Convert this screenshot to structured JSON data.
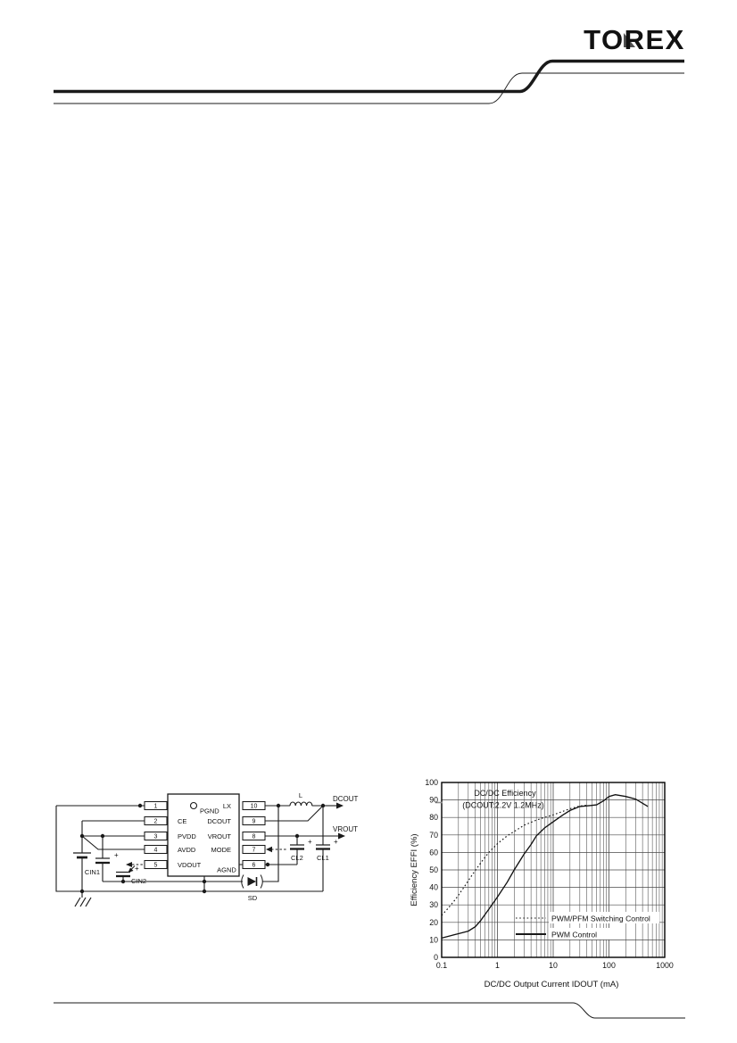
{
  "header": {
    "logo_text": "TOREX"
  },
  "circuit": {
    "pins_left": [
      {
        "number": "1",
        "name": "PGND"
      },
      {
        "number": "2",
        "name": "CE"
      },
      {
        "number": "3",
        "name": "PVDD"
      },
      {
        "number": "4",
        "name": "AVDD"
      },
      {
        "number": "5",
        "name": "VDOUT"
      }
    ],
    "pins_right": [
      {
        "number": "10",
        "name": "LX"
      },
      {
        "number": "9",
        "name": "DCOUT"
      },
      {
        "number": "8",
        "name": "VROUT"
      },
      {
        "number": "7",
        "name": "MODE"
      },
      {
        "number": "6",
        "name": "AGND"
      }
    ],
    "labels": {
      "inductor": "L",
      "cin1": "CIN1",
      "cin2": "CIN2",
      "cl1": "CL1",
      "cl2": "CL2",
      "diode": "SD",
      "dcout": "DCOUT",
      "vrout": "VROUT",
      "plus": "+"
    }
  },
  "chart_data": {
    "type": "line",
    "title": "DC/DC Efficiency",
    "subtitle": "(DCOUT:2.2V  1.2MHz)",
    "xlabel": "DC/DC Output Current IDOUT (mA)",
    "ylabel": "Efficiency EFFI (%)",
    "xscale": "log",
    "xlim": [
      0.1,
      1000
    ],
    "ylim": [
      0,
      100
    ],
    "xticks": [
      "0.1",
      "1",
      "10",
      "100",
      "1000"
    ],
    "yticks": [
      0,
      10,
      20,
      30,
      40,
      50,
      60,
      70,
      80,
      90,
      100
    ],
    "grid": true,
    "legend_position": "inside-bottom-right",
    "series": [
      {
        "name": "PWM/PFM Switching Control",
        "style": "dotted",
        "points": [
          [
            0.1,
            24
          ],
          [
            0.13,
            28
          ],
          [
            0.18,
            33.5
          ],
          [
            0.25,
            40
          ],
          [
            0.35,
            47
          ],
          [
            0.5,
            54
          ],
          [
            0.7,
            60
          ],
          [
            1,
            65
          ],
          [
            1.5,
            69.5
          ],
          [
            2,
            72
          ],
          [
            3,
            75.5
          ],
          [
            5,
            78.5
          ],
          [
            7,
            80
          ],
          [
            10,
            81.5
          ],
          [
            15,
            83.5
          ],
          [
            20,
            85
          ],
          [
            30,
            86.5
          ],
          [
            40,
            87
          ]
        ]
      },
      {
        "name": "PWM Control",
        "style": "solid",
        "points": [
          [
            0.1,
            11
          ],
          [
            0.15,
            12.5
          ],
          [
            0.2,
            13.5
          ],
          [
            0.3,
            15
          ],
          [
            0.4,
            17.5
          ],
          [
            0.5,
            21
          ],
          [
            0.7,
            27.5
          ],
          [
            1,
            34.5
          ],
          [
            1.5,
            43
          ],
          [
            2,
            50
          ],
          [
            3,
            59
          ],
          [
            4,
            64.5
          ],
          [
            5,
            69.5
          ],
          [
            7,
            74
          ],
          [
            10,
            77.5
          ],
          [
            15,
            81.5
          ],
          [
            20,
            84
          ],
          [
            30,
            86.3
          ],
          [
            45,
            86.8
          ],
          [
            60,
            87.2
          ],
          [
            80,
            89.5
          ],
          [
            100,
            92
          ],
          [
            130,
            93
          ],
          [
            200,
            92
          ],
          [
            300,
            90.5
          ],
          [
            500,
            86.3
          ]
        ]
      }
    ]
  }
}
